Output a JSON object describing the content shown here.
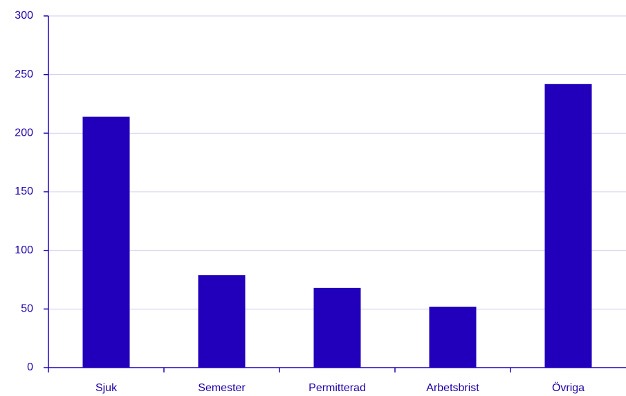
{
  "chart_data": {
    "type": "bar",
    "categories": [
      "Sjuk",
      "Semester",
      "Permitterad",
      "Arbetsbrist",
      "Övriga"
    ],
    "values": [
      214,
      79,
      68,
      52,
      242
    ],
    "color": "#2200bb",
    "ylim": [
      0,
      300
    ],
    "yticks": [
      0,
      50,
      100,
      150,
      200,
      250,
      300
    ],
    "grid": true
  }
}
